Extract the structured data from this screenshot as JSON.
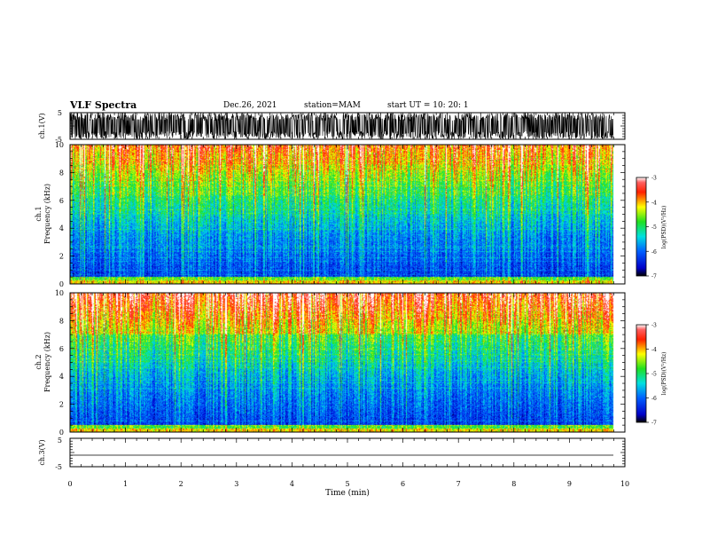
{
  "header": {
    "title": "VLF Spectra",
    "date": "Dec.26, 2021",
    "station": "station=MAM",
    "start": "start  UT  =    10: 20: 1"
  },
  "chart_data": [
    {
      "type": "line",
      "name": "ch1-waveform",
      "ylabel": "ch.1(V)",
      "ylim": [
        -5,
        5
      ],
      "yticks": [
        "5",
        "-5"
      ],
      "xlim": [
        0,
        10
      ],
      "description_free": true
    },
    {
      "type": "heatmap",
      "name": "ch1-spectrogram",
      "ylabel_top": "ch.1",
      "ylabel": "Frequency (kHz)",
      "ylim": [
        0,
        10
      ],
      "yticks": [
        "0",
        "2",
        "4",
        "6",
        "8",
        "10"
      ],
      "xlim": [
        0,
        10
      ],
      "colorbar": {
        "label": "log(PSD)(V²/Hz)",
        "range": [
          -7,
          -3
        ],
        "ticks": [
          "-3",
          "-4",
          "-5",
          "-6",
          "-7"
        ]
      }
    },
    {
      "type": "heatmap",
      "name": "ch2-spectrogram",
      "ylabel_top": "ch.2",
      "ylabel": "Frequency (kHz)",
      "ylim": [
        0,
        10
      ],
      "yticks": [
        "0",
        "2",
        "4",
        "6",
        "8",
        "10"
      ],
      "xlim": [
        0,
        10
      ],
      "colorbar": {
        "label": "log(PSD)(V²/Hz)",
        "range": [
          -7,
          -3
        ],
        "ticks": [
          "-3",
          "-4",
          "-5",
          "-6",
          "-7"
        ]
      }
    },
    {
      "type": "line",
      "name": "ch3-waveform",
      "ylabel": "ch.3(V)",
      "ylim": [
        -5,
        5
      ],
      "yticks": [
        "5",
        "-5"
      ],
      "xlim": [
        0,
        10
      ],
      "xlabel": "Time (min)",
      "xticks": [
        "0",
        "1",
        "2",
        "3",
        "4",
        "5",
        "6",
        "7",
        "8",
        "9",
        "10"
      ]
    }
  ]
}
